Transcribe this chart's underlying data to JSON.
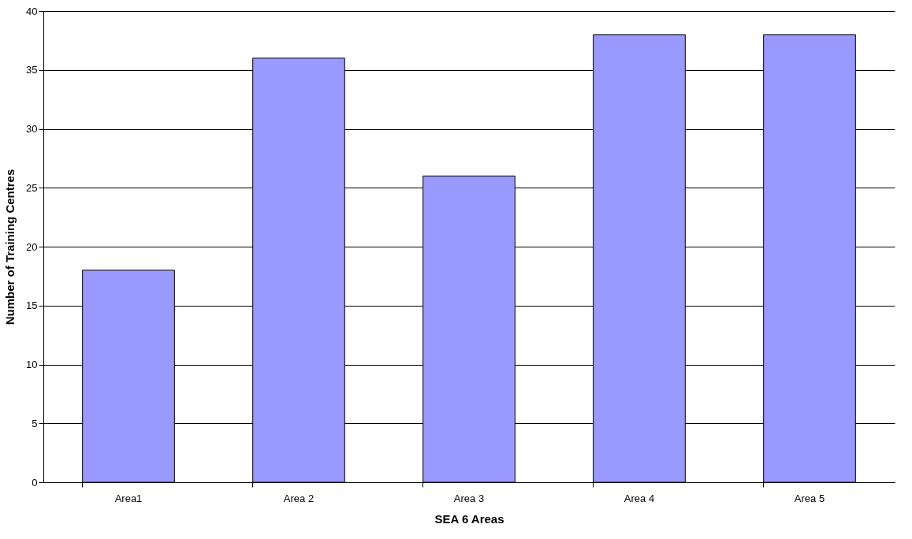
{
  "chart_data": {
    "type": "bar",
    "xlabel": "SEA 6 Areas",
    "ylabel": "Number of Training Centres",
    "categories": [
      "Area1",
      "Area 2",
      "Area 3",
      "Area 4",
      "Area 5"
    ],
    "values": [
      18,
      36,
      26,
      38,
      38
    ],
    "color": "#9999ff",
    "ylim": [
      0,
      40
    ],
    "yticks": [
      0,
      5,
      10,
      15,
      20,
      25,
      30,
      35,
      40
    ],
    "grid": "y"
  }
}
